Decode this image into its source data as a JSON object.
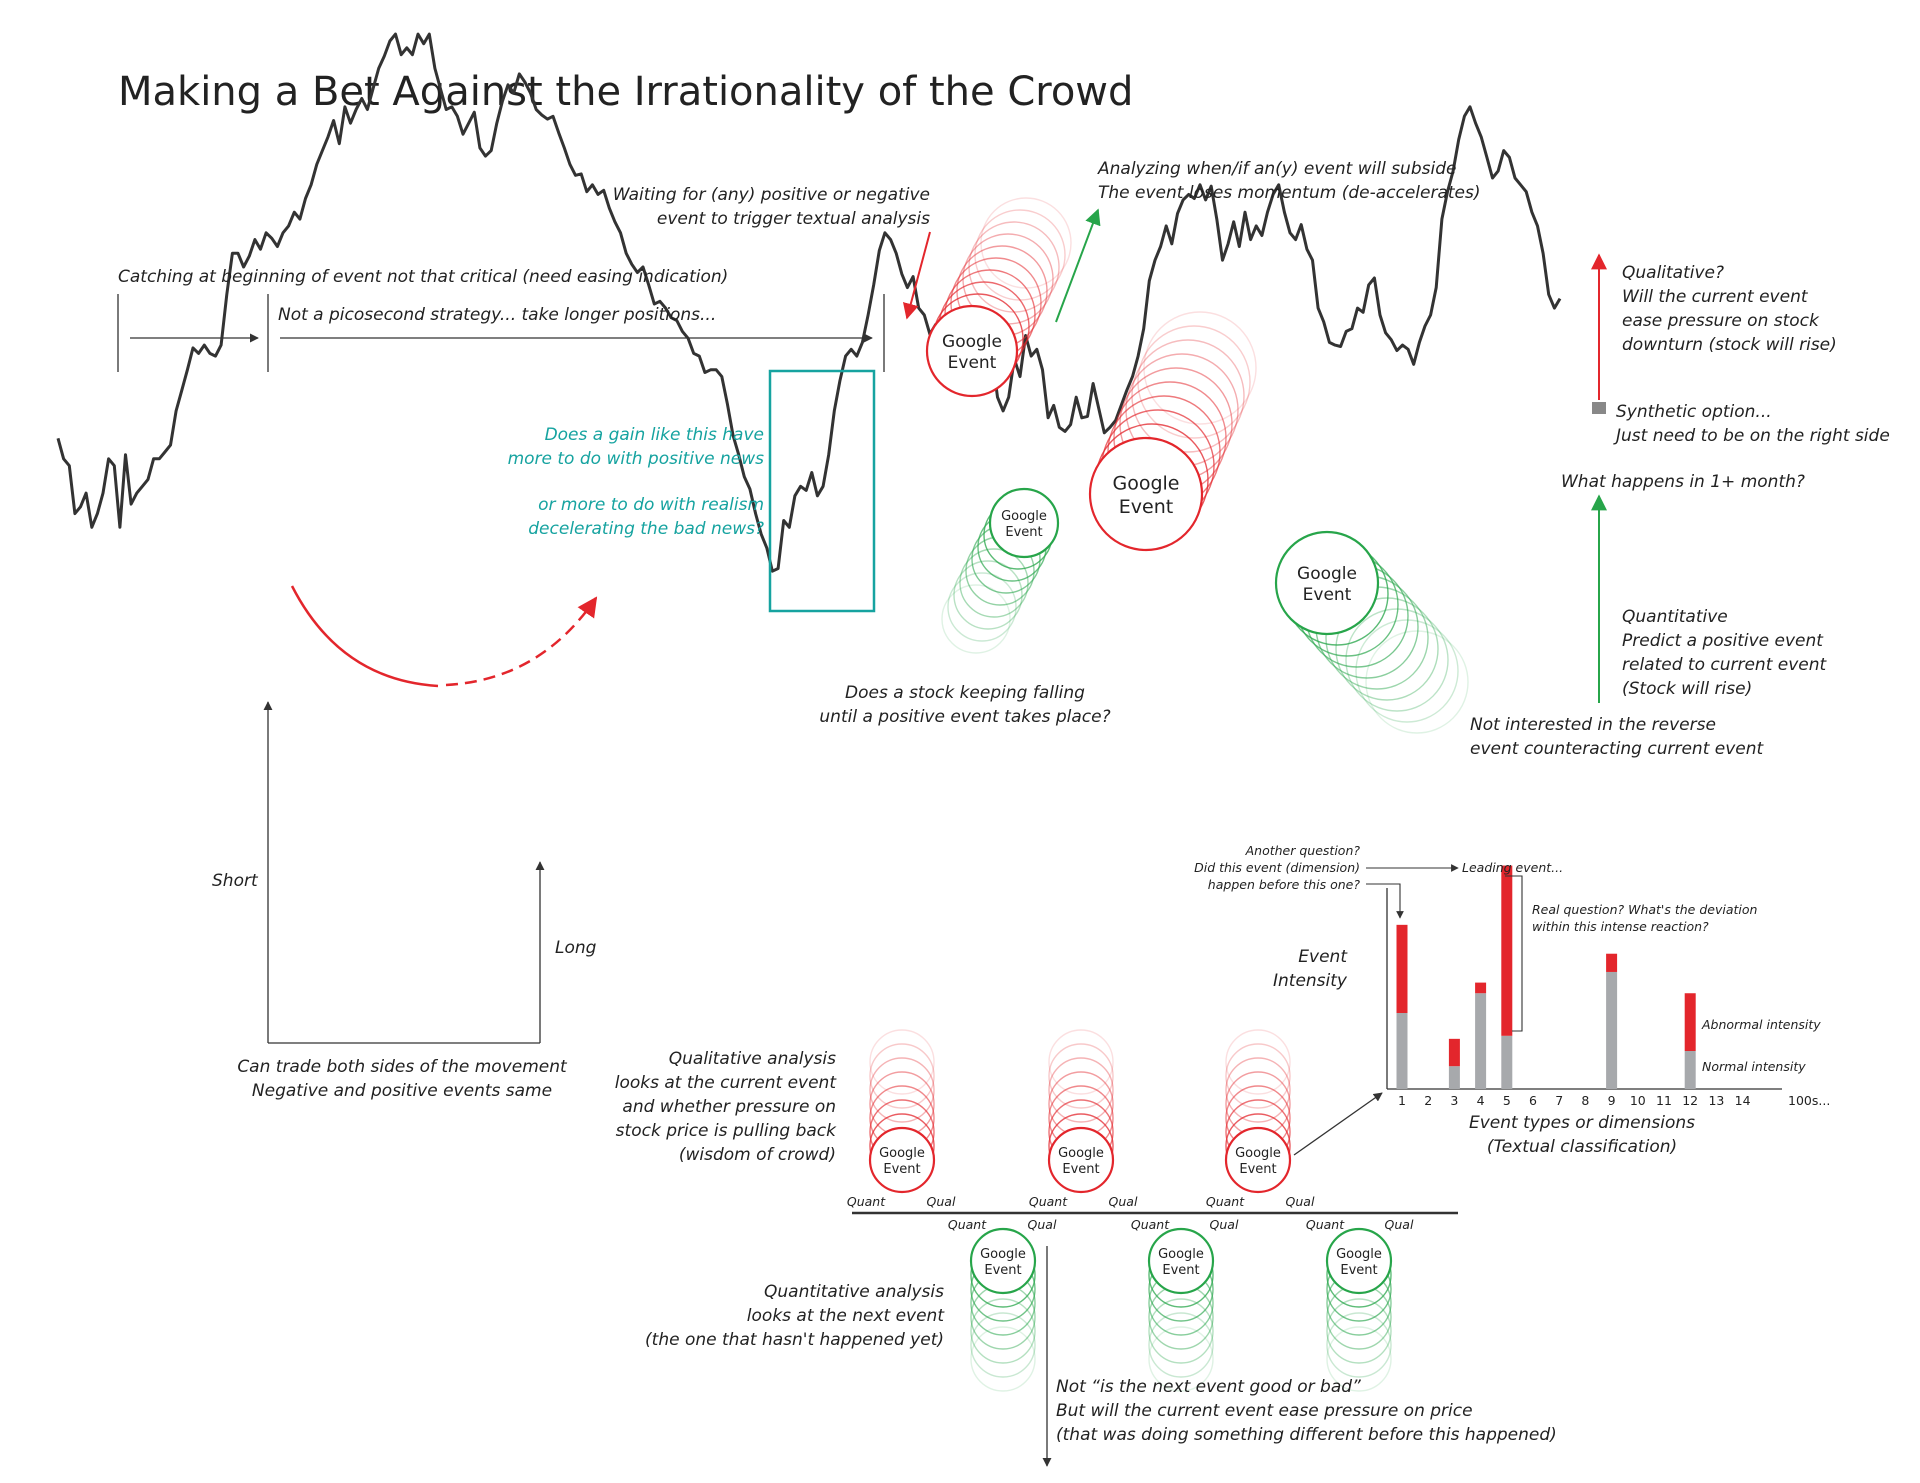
{
  "title": "Making a Bet Against the Irrationality of the Crowd",
  "colors": {
    "red": "#e3262c",
    "green": "#27a54a",
    "teal": "#16a3a0",
    "gray": "#a7a9ac",
    "line": "#333333"
  },
  "top": {
    "catching": "Catching at beginning of event not that critical (need easing indication)",
    "picosecond": "Not a picosecond strategy... take longer positions...",
    "waiting_l1": "Waiting for (any) positive or negative",
    "waiting_l2": "event to trigger textual analysis",
    "analyzing_l1": "Analyzing when/if an(y) event will subside",
    "analyzing_l2": "The event loses momentum (de-accelerates)"
  },
  "teal": {
    "q1_l1": "Does a gain like this have",
    "q1_l2": "more to do with positive news",
    "q2_l1": "or more to do with realism",
    "q2_l2": "decelerating the bad news?"
  },
  "right": {
    "qual_l1": "Qualitative?",
    "qual_l2": "Will the current event",
    "qual_l3": "ease pressure on stock",
    "qual_l4": "downturn (stock will rise)",
    "syn_l1": "Synthetic option...",
    "syn_l2": "Just need to be on the right side",
    "what": "What happens in 1+ month?",
    "quant_l1": "Quantitative",
    "quant_l2": "Predict a positive event",
    "quant_l3": "related to current event",
    "quant_l4": "(Stock will rise)",
    "notint_l1": "Not interested in the reverse",
    "notint_l2": "event counteracting current event"
  },
  "mid": {
    "falling_l1": "Does a stock keeping falling",
    "falling_l2": "until a positive event takes place?",
    "short": "Short",
    "long": "Long",
    "trade_l1": "Can trade both sides of the movement",
    "trade_l2": "Negative and positive events same"
  },
  "event": {
    "l1": "Google",
    "l2": "Event"
  },
  "lower": {
    "qualana_l1": "Qualitative analysis",
    "qualana_l2": "looks at the current event",
    "qualana_l3": "and whether pressure on",
    "qualana_l4": "stock price is pulling back",
    "qualana_l5": "(wisdom of crowd)",
    "quantana_l1": "Quantitative analysis",
    "quantana_l2": "looks at the next event",
    "quantana_l3": "(the one that hasn't happened yet)",
    "not_l1": "Not “is the next event good or bad”",
    "not_l2": "But will the current event ease pressure on price",
    "not_l3": "(that was doing something different before this happened)",
    "quant": "Quant",
    "qual": "Qual"
  },
  "chart_data": {
    "type": "bar",
    "ylabel_l1": "Event",
    "ylabel_l2": "Intensity",
    "xlabel_l1": "Event types or dimensions",
    "xlabel_l2": "(Textual classification)",
    "categories": [
      "1",
      "2",
      "3",
      "4",
      "5",
      "6",
      "7",
      "8",
      "9",
      "10",
      "11",
      "12",
      "13",
      "14"
    ],
    "extra_tick": "100s...",
    "series": [
      {
        "name": "Normal intensity",
        "values": [
          0.5,
          0,
          0.15,
          0.63,
          0.35,
          0,
          0,
          0,
          0.77,
          0,
          0,
          0.25,
          0,
          0
        ]
      },
      {
        "name": "Abnormal intensity",
        "values": [
          0.58,
          0,
          0.18,
          0.07,
          1.12,
          0,
          0,
          0,
          0.12,
          0,
          0,
          0.38,
          0,
          0
        ]
      }
    ],
    "annotations": {
      "another_l1": "Another question?",
      "another_l2": "Did this event (dimension)",
      "another_l3": "happen before this one?",
      "leading": "Leading event...",
      "real_l1": "Real question? What's the deviation",
      "real_l2": "within this intense reaction?",
      "abnormal": "Abnormal intensity",
      "normal": "Normal intensity"
    }
  },
  "price_series": [
    410,
    395,
    390,
    355,
    360,
    370,
    345,
    355,
    370,
    395,
    390,
    345,
    398,
    362,
    370,
    375,
    380,
    395,
    395,
    400,
    405,
    430,
    445,
    460,
    476,
    472,
    478,
    472,
    470,
    478,
    515,
    545,
    545,
    535,
    543,
    555,
    548,
    560,
    556,
    550,
    560,
    565,
    575,
    570,
    585,
    595,
    610,
    620,
    630,
    642,
    625,
    652,
    640,
    650,
    658,
    650,
    665,
    680,
    689,
    700,
    705,
    690,
    695,
    690,
    705,
    698,
    705,
    680,
    665,
    650,
    652,
    645,
    632,
    640,
    648,
    622,
    616,
    620,
    640,
    656,
    668,
    662,
    676,
    670,
    662,
    650,
    646,
    643,
    645,
    633,
    622,
    610,
    602,
    603,
    590,
    595,
    588,
    591,
    578,
    568,
    560,
    545,
    537,
    531,
    535,
    522,
    508,
    510,
    505,
    498,
    496,
    488,
    483,
    472,
    470,
    458,
    460,
    460,
    455,
    435,
    412,
    398,
    382,
    373,
    355,
    340,
    330,
    313,
    315,
    350,
    345,
    368,
    375,
    372,
    385,
    368,
    375,
    398,
    430,
    452,
    470,
    475,
    470,
    480,
    500,
    522,
    547,
    560,
    555,
    545,
    530,
    520,
    528,
    505,
    500,
    486,
    493,
    482,
    460,
    464,
    474,
    492,
    477,
    481,
    472,
    485,
    472,
    440,
    430,
    440,
    468,
    455,
    485,
    470,
    475,
    460,
    425,
    434,
    418,
    415,
    420,
    440,
    425,
    426,
    450,
    432,
    414,
    418,
    423,
    434,
    445,
    455,
    470,
    490,
    525,
    540,
    550,
    565,
    552,
    574,
    584,
    588,
    585,
    595,
    584,
    594,
    570,
    540,
    552,
    568,
    550,
    575,
    555,
    565,
    558,
    575,
    588,
    595,
    575,
    560,
    555,
    566,
    548,
    540,
    505,
    495,
    480,
    478,
    477,
    488,
    490,
    505,
    502,
    522,
    527,
    500,
    487,
    482,
    474,
    478,
    475,
    464,
    480,
    492,
    500,
    520,
    570,
    590,
    605,
    628,
    645,
    652,
    640,
    630,
    615,
    600,
    605,
    620,
    615,
    600,
    595,
    590,
    575,
    565,
    545,
    515,
    505,
    512
  ]
}
